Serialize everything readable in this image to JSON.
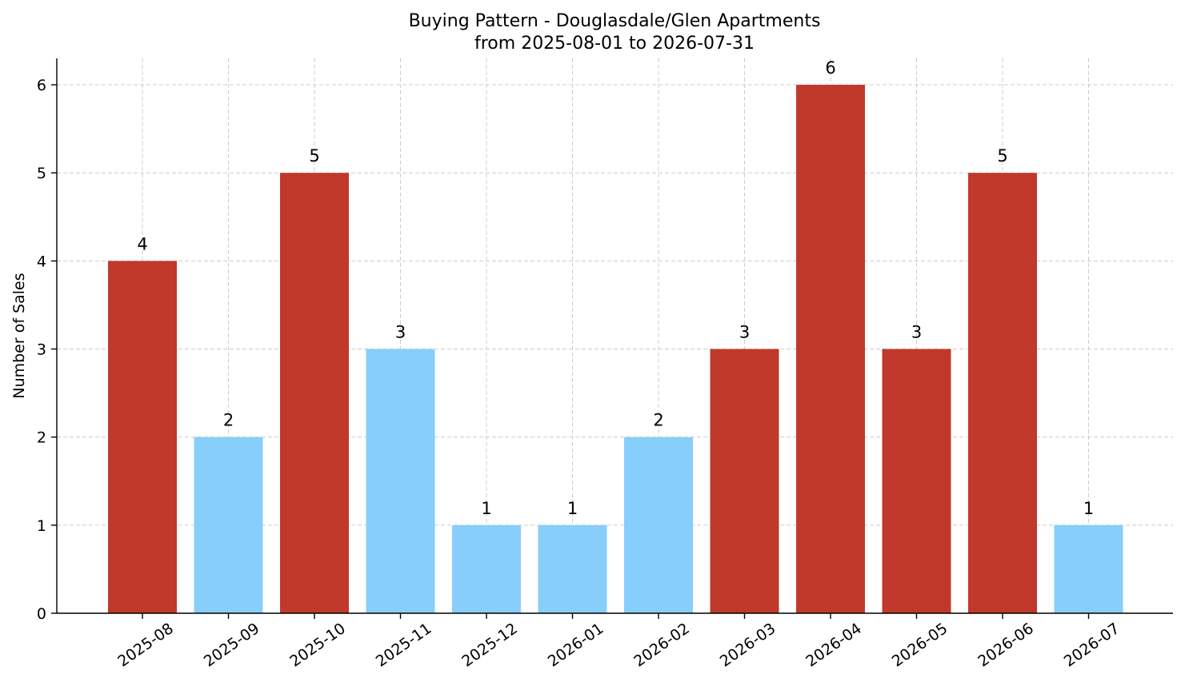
{
  "chart_data": {
    "type": "bar",
    "title": "Buying Pattern - Douglasdale/Glen Apartments",
    "subtitle": "from 2025-08-01 to 2026-07-31",
    "xlabel": "",
    "ylabel": "Number of Sales",
    "ylim": [
      0,
      6.3
    ],
    "yticks": [
      "0",
      "1",
      "2",
      "3",
      "4",
      "5",
      "6"
    ],
    "grid": true,
    "categories": [
      "2025-08",
      "2025-09",
      "2025-10",
      "2025-11",
      "2025-12",
      "2026-01",
      "2026-02",
      "2026-03",
      "2026-04",
      "2026-05",
      "2026-06",
      "2026-07"
    ],
    "values": [
      4,
      2,
      5,
      3,
      1,
      1,
      2,
      3,
      6,
      3,
      5,
      1
    ],
    "bar_colors": [
      "#c0392b",
      "#87cefa",
      "#c0392b",
      "#87cefa",
      "#87cefa",
      "#87cefa",
      "#87cefa",
      "#c0392b",
      "#c0392b",
      "#c0392b",
      "#c0392b",
      "#87cefa"
    ],
    "bar_labels": [
      "4",
      "2",
      "5",
      "3",
      "1",
      "1",
      "2",
      "3",
      "6",
      "3",
      "5",
      "1"
    ]
  }
}
